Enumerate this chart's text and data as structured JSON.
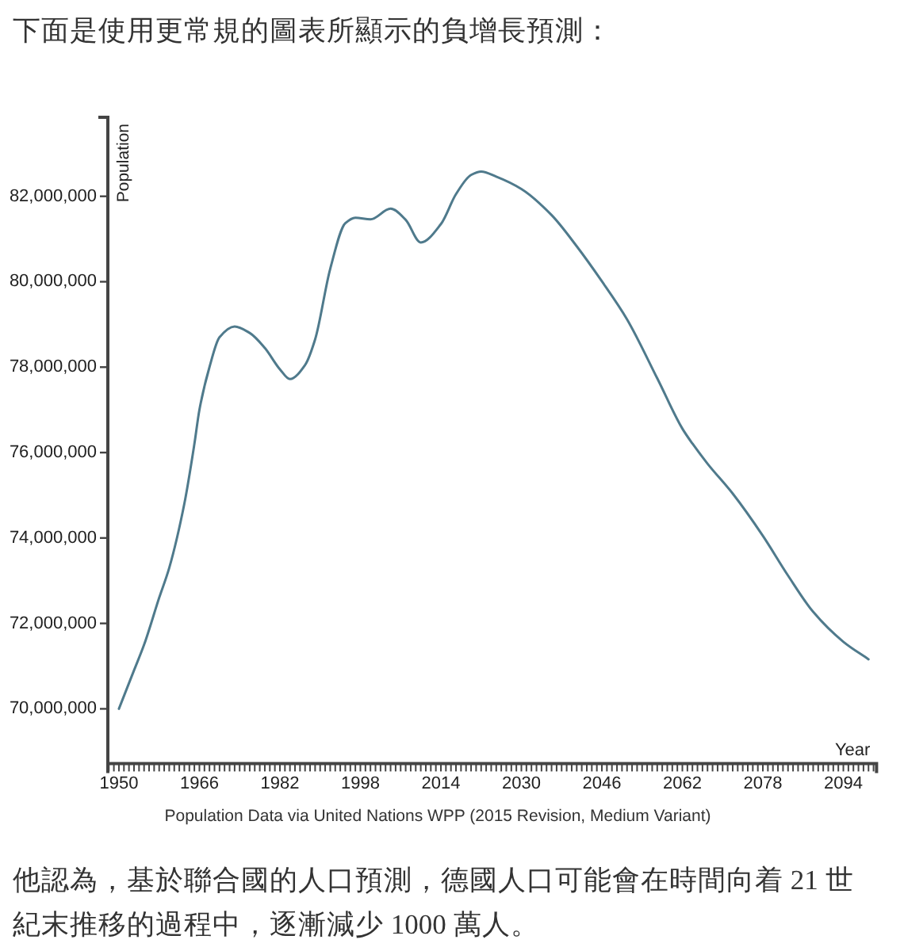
{
  "chart_data": {
    "type": "line",
    "title": "下面是使用更常規的圖表所顯示的負增長預測：",
    "xlabel": "Year",
    "ylabel": "Population",
    "annotations": [
      "Population Data via United Nations WPP (2015 Revision, Medium Variant)",
      "他認為，基於聯合國的人口預測，德國人口可能會在時間向着 21 世紀末推移的過程中，逐漸減少 1000 萬人。"
    ],
    "x": [
      1950,
      1953,
      1955,
      1958,
      1960,
      1963,
      1965,
      1966,
      1968,
      1970,
      1973,
      1976,
      1979,
      1982,
      1984,
      1987,
      1989,
      1992,
      1995,
      1997,
      2000,
      2004,
      2007,
      2010,
      2014,
      2017,
      2020,
      2022,
      2025,
      2030,
      2036,
      2041,
      2046,
      2051,
      2057,
      2062,
      2064,
      2067,
      2072,
      2078,
      2083,
      2088,
      2094,
      2099
    ],
    "series": [
      {
        "color": "#4f7a8c",
        "line_style": "solid",
        "values": [
          70000000,
          70900000,
          71500000,
          72600000,
          73300000,
          74800000,
          76200000,
          77000000,
          78000000,
          78700000,
          78950000,
          78800000,
          78450000,
          77950000,
          77720000,
          78050000,
          78650000,
          80300000,
          81370000,
          81500000,
          81460000,
          81710000,
          81450000,
          80920000,
          81350000,
          82050000,
          82500000,
          82580000,
          82460000,
          82170000,
          81560000,
          80830000,
          80010000,
          79120000,
          77740000,
          76560000,
          76210000,
          75740000,
          75040000,
          74050000,
          73120000,
          72270000,
          71570000,
          71160000
        ]
      }
    ],
    "xlim": [
      1947.8,
      2100.6
    ],
    "ylim": [
      68720000,
      83850000
    ],
    "yticks": [
      {
        "value": 70000000,
        "label": "70,000,000"
      },
      {
        "value": 72000000,
        "label": "72,000,000"
      },
      {
        "value": 74000000,
        "label": "74,000,000"
      },
      {
        "value": 76000000,
        "label": "76,000,000"
      },
      {
        "value": 78000000,
        "label": "78,000,000"
      },
      {
        "value": 80000000,
        "label": "80,000,000"
      },
      {
        "value": 82000000,
        "label": "82,000,000"
      }
    ],
    "xticks": [
      {
        "value": 1948,
        "label": null
      },
      {
        "value": 1949,
        "label": null
      },
      1950,
      {
        "value": 1951,
        "label": null
      },
      {
        "value": 1952,
        "label": null
      },
      {
        "value": 1953,
        "label": null
      },
      {
        "value": 1954,
        "label": null
      },
      {
        "value": 1955,
        "label": null
      },
      {
        "value": 1956,
        "label": null
      },
      {
        "value": 1957,
        "label": null
      },
      {
        "value": 1958,
        "label": null
      },
      {
        "value": 1959,
        "label": null
      },
      {
        "value": 1960,
        "label": null
      },
      {
        "value": 1961,
        "label": null
      },
      {
        "value": 1962,
        "label": null
      },
      {
        "value": 1963,
        "label": null
      },
      {
        "value": 1964,
        "label": null
      },
      {
        "value": 1965,
        "label": null
      },
      1966,
      {
        "value": 1967,
        "label": null
      },
      {
        "value": 1968,
        "label": null
      },
      {
        "value": 1969,
        "label": null
      },
      {
        "value": 1970,
        "label": null
      },
      {
        "value": 1971,
        "label": null
      },
      {
        "value": 1972,
        "label": null
      },
      {
        "value": 1973,
        "label": null
      },
      {
        "value": 1974,
        "label": null
      },
      {
        "value": 1975,
        "label": null
      },
      {
        "value": 1976,
        "label": null
      },
      {
        "value": 1977,
        "label": null
      },
      {
        "value": 1978,
        "label": null
      },
      {
        "value": 1979,
        "label": null
      },
      {
        "value": 1980,
        "label": null
      },
      {
        "value": 1981,
        "label": null
      },
      1982,
      {
        "value": 1983,
        "label": null
      },
      {
        "value": 1984,
        "label": null
      },
      {
        "value": 1985,
        "label": null
      },
      {
        "value": 1986,
        "label": null
      },
      {
        "value": 1987,
        "label": null
      },
      {
        "value": 1988,
        "label": null
      },
      {
        "value": 1989,
        "label": null
      },
      {
        "value": 1990,
        "label": null
      },
      {
        "value": 1991,
        "label": null
      },
      {
        "value": 1992,
        "label": null
      },
      {
        "value": 1993,
        "label": null
      },
      {
        "value": 1994,
        "label": null
      },
      {
        "value": 1995,
        "label": null
      },
      {
        "value": 1996,
        "label": null
      },
      {
        "value": 1997,
        "label": null
      },
      1998,
      {
        "value": 1999,
        "label": null
      },
      {
        "value": 2000,
        "label": null
      },
      {
        "value": 2001,
        "label": null
      },
      {
        "value": 2002,
        "label": null
      },
      {
        "value": 2003,
        "label": null
      },
      {
        "value": 2004,
        "label": null
      },
      {
        "value": 2005,
        "label": null
      },
      {
        "value": 2006,
        "label": null
      },
      {
        "value": 2007,
        "label": null
      },
      {
        "value": 2008,
        "label": null
      },
      {
        "value": 2009,
        "label": null
      },
      {
        "value": 2010,
        "label": null
      },
      {
        "value": 2011,
        "label": null
      },
      {
        "value": 2012,
        "label": null
      },
      {
        "value": 2013,
        "label": null
      },
      2014,
      {
        "value": 2015,
        "label": null
      },
      {
        "value": 2016,
        "label": null
      },
      {
        "value": 2017,
        "label": null
      },
      {
        "value": 2018,
        "label": null
      },
      {
        "value": 2019,
        "label": null
      },
      {
        "value": 2020,
        "label": null
      },
      {
        "value": 2021,
        "label": null
      },
      {
        "value": 2022,
        "label": null
      },
      {
        "value": 2023,
        "label": null
      },
      {
        "value": 2024,
        "label": null
      },
      {
        "value": 2025,
        "label": null
      },
      {
        "value": 2026,
        "label": null
      },
      {
        "value": 2027,
        "label": null
      },
      {
        "value": 2028,
        "label": null
      },
      {
        "value": 2029,
        "label": null
      },
      2030,
      {
        "value": 2031,
        "label": null
      },
      {
        "value": 2032,
        "label": null
      },
      {
        "value": 2033,
        "label": null
      },
      {
        "value": 2034,
        "label": null
      },
      {
        "value": 2035,
        "label": null
      },
      {
        "value": 2036,
        "label": null
      },
      {
        "value": 2037,
        "label": null
      },
      {
        "value": 2038,
        "label": null
      },
      {
        "value": 2039,
        "label": null
      },
      {
        "value": 2040,
        "label": null
      },
      {
        "value": 2041,
        "label": null
      },
      {
        "value": 2042,
        "label": null
      },
      {
        "value": 2043,
        "label": null
      },
      {
        "value": 2044,
        "label": null
      },
      {
        "value": 2045,
        "label": null
      },
      2046,
      {
        "value": 2047,
        "label": null
      },
      {
        "value": 2048,
        "label": null
      },
      {
        "value": 2049,
        "label": null
      },
      {
        "value": 2050,
        "label": null
      },
      {
        "value": 2051,
        "label": null
      },
      {
        "value": 2052,
        "label": null
      },
      {
        "value": 2053,
        "label": null
      },
      {
        "value": 2054,
        "label": null
      },
      {
        "value": 2055,
        "label": null
      },
      {
        "value": 2056,
        "label": null
      },
      {
        "value": 2057,
        "label": null
      },
      {
        "value": 2058,
        "label": null
      },
      {
        "value": 2059,
        "label": null
      },
      {
        "value": 2060,
        "label": null
      },
      {
        "value": 2061,
        "label": null
      },
      2062,
      {
        "value": 2063,
        "label": null
      },
      {
        "value": 2064,
        "label": null
      },
      {
        "value": 2065,
        "label": null
      },
      {
        "value": 2066,
        "label": null
      },
      {
        "value": 2067,
        "label": null
      },
      {
        "value": 2068,
        "label": null
      },
      {
        "value": 2069,
        "label": null
      },
      {
        "value": 2070,
        "label": null
      },
      {
        "value": 2071,
        "label": null
      },
      {
        "value": 2072,
        "label": null
      },
      {
        "value": 2073,
        "label": null
      },
      {
        "value": 2074,
        "label": null
      },
      {
        "value": 2075,
        "label": null
      },
      {
        "value": 2076,
        "label": null
      },
      {
        "value": 2077,
        "label": null
      },
      2078,
      {
        "value": 2079,
        "label": null
      },
      {
        "value": 2080,
        "label": null
      },
      {
        "value": 2081,
        "label": null
      },
      {
        "value": 2082,
        "label": null
      },
      {
        "value": 2083,
        "label": null
      },
      {
        "value": 2084,
        "label": null
      },
      {
        "value": 2085,
        "label": null
      },
      {
        "value": 2086,
        "label": null
      },
      {
        "value": 2087,
        "label": null
      },
      {
        "value": 2088,
        "label": null
      },
      {
        "value": 2089,
        "label": null
      },
      {
        "value": 2090,
        "label": null
      },
      {
        "value": 2091,
        "label": null
      },
      {
        "value": 2092,
        "label": null
      },
      {
        "value": 2093,
        "label": null
      },
      2094,
      {
        "value": 2095,
        "label": null
      },
      {
        "value": 2096,
        "label": null
      },
      {
        "value": 2097,
        "label": null
      },
      {
        "value": 2098,
        "label": null
      },
      {
        "value": 2099,
        "label": null
      },
      {
        "value": 2100,
        "label": null
      }
    ]
  }
}
